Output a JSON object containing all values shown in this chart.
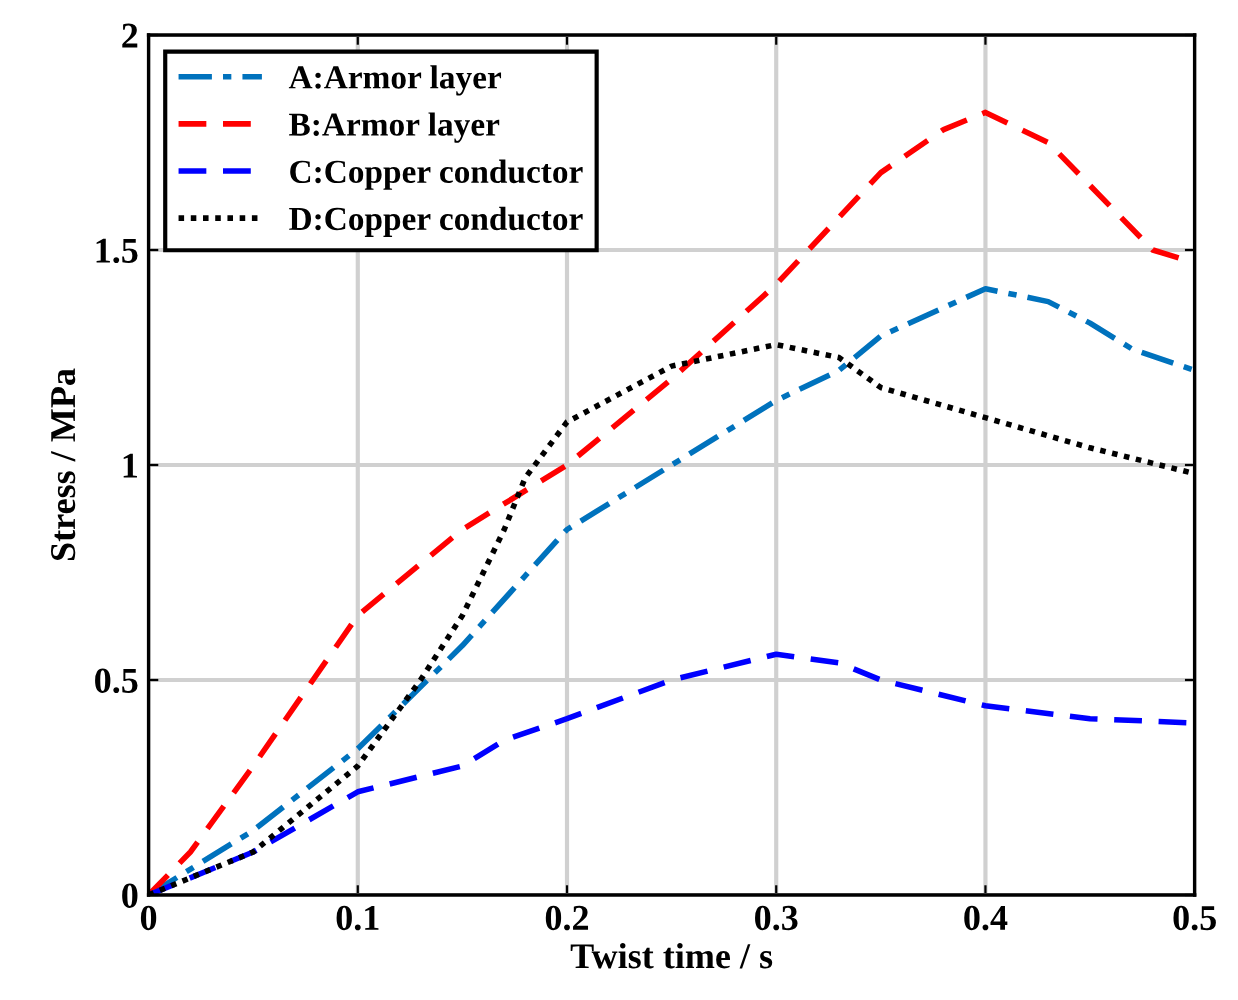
{
  "chart_data": {
    "type": "line",
    "xlabel": "Twist time / s",
    "ylabel": "Stress / MPa",
    "xlim": [
      0,
      0.5
    ],
    "ylim": [
      0,
      2
    ],
    "xticks": [
      {
        "value": 0,
        "label": "0"
      },
      {
        "value": 0.1,
        "label": "0.1"
      },
      {
        "value": 0.2,
        "label": "0.2"
      },
      {
        "value": 0.3,
        "label": "0.3"
      },
      {
        "value": 0.4,
        "label": "0.4"
      },
      {
        "value": 0.5,
        "label": "0.5"
      }
    ],
    "yticks": [
      {
        "value": 0,
        "label": "0"
      },
      {
        "value": 0.5,
        "label": "0.5"
      },
      {
        "value": 1,
        "label": "1"
      },
      {
        "value": 1.5,
        "label": "1.5"
      },
      {
        "value": 2,
        "label": "2"
      }
    ],
    "grid": true,
    "legend": "top left",
    "series": [
      {
        "name": "A:Armor layer",
        "color": "#0072bd",
        "line_style": "dashdot",
        "x": [
          0,
          0.05,
          0.1,
          0.15,
          0.2,
          0.25,
          0.3,
          0.33,
          0.35,
          0.4,
          0.43,
          0.45,
          0.47,
          0.5
        ],
        "values": [
          0,
          0.15,
          0.34,
          0.58,
          0.85,
          1.0,
          1.15,
          1.22,
          1.3,
          1.41,
          1.38,
          1.33,
          1.27,
          1.22
        ]
      },
      {
        "name": "B:Armor layer",
        "color": "#ff0000",
        "line_style": "dashed",
        "x": [
          0,
          0.02,
          0.05,
          0.1,
          0.15,
          0.2,
          0.25,
          0.3,
          0.35,
          0.38,
          0.4,
          0.43,
          0.45,
          0.48,
          0.5
        ],
        "values": [
          0,
          0.1,
          0.3,
          0.65,
          0.85,
          1.0,
          1.2,
          1.42,
          1.68,
          1.78,
          1.82,
          1.75,
          1.65,
          1.5,
          1.47
        ]
      },
      {
        "name": "C:Copper conductor",
        "color": "#0000ff",
        "line_style": "dashed",
        "x": [
          0,
          0.05,
          0.1,
          0.15,
          0.17,
          0.2,
          0.25,
          0.3,
          0.33,
          0.35,
          0.4,
          0.45,
          0.5
        ],
        "values": [
          0,
          0.1,
          0.24,
          0.3,
          0.36,
          0.41,
          0.5,
          0.56,
          0.54,
          0.5,
          0.44,
          0.41,
          0.4
        ]
      },
      {
        "name": "D:Copper conductor",
        "color": "#000000",
        "line_style": "dotted",
        "x": [
          0,
          0.05,
          0.1,
          0.13,
          0.15,
          0.17,
          0.18,
          0.2,
          0.25,
          0.3,
          0.33,
          0.35,
          0.4,
          0.45,
          0.5
        ],
        "values": [
          0,
          0.1,
          0.3,
          0.5,
          0.65,
          0.85,
          0.97,
          1.1,
          1.23,
          1.28,
          1.25,
          1.18,
          1.11,
          1.04,
          0.98
        ]
      }
    ]
  }
}
